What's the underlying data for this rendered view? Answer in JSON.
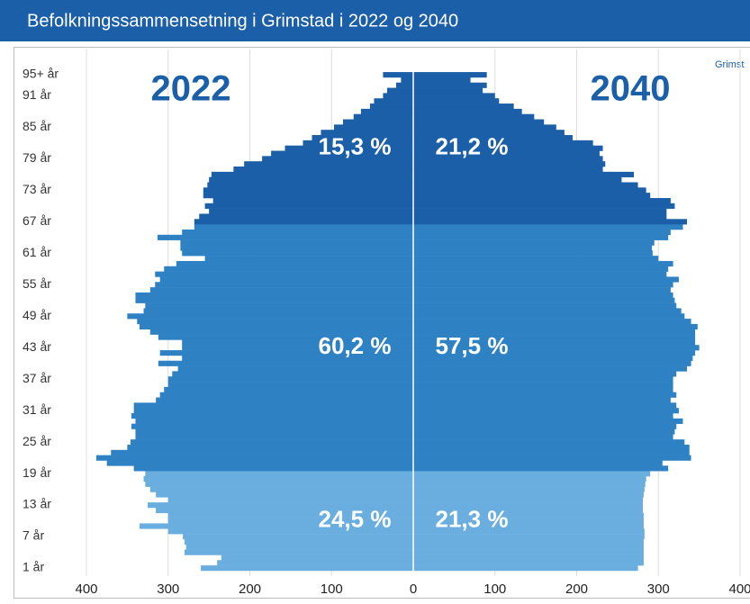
{
  "chart_data": {
    "type": "pyramid",
    "title": "Befolkningssammensetning i Grimstad i 2022 og 2040",
    "annotation": "Grimst",
    "categories": [
      "1 år",
      null,
      null,
      null,
      null,
      null,
      "7 år",
      null,
      null,
      null,
      null,
      null,
      "13 år",
      null,
      null,
      null,
      null,
      null,
      "19 år",
      null,
      null,
      null,
      null,
      null,
      "25 år",
      null,
      null,
      null,
      null,
      null,
      "31 år",
      null,
      null,
      null,
      null,
      null,
      "37 år",
      null,
      null,
      null,
      null,
      null,
      "43 år",
      null,
      null,
      null,
      null,
      null,
      "49 år",
      null,
      null,
      null,
      null,
      null,
      "55 år",
      null,
      null,
      null,
      null,
      null,
      "61 år",
      null,
      null,
      null,
      null,
      null,
      "67 år",
      null,
      null,
      null,
      null,
      null,
      "73 år",
      null,
      null,
      null,
      null,
      null,
      "79 år",
      null,
      null,
      null,
      null,
      null,
      "85 år",
      null,
      null,
      null,
      null,
      null,
      "91 år",
      null,
      null,
      null,
      "95+ år"
    ],
    "series": [
      {
        "name": "2022",
        "side": "left",
        "values": [
          260,
          240,
          235,
          280,
          278,
          280,
          282,
          300,
          335,
          300,
          300,
          315,
          325,
          300,
          315,
          322,
          328,
          330,
          328,
          342,
          375,
          388,
          370,
          350,
          346,
          340,
          340,
          345,
          340,
          345,
          342,
          342,
          315,
          310,
          305,
          300,
          300,
          295,
          288,
          312,
          283,
          310,
          283,
          283,
          312,
          322,
          335,
          338,
          350,
          330,
          328,
          340,
          340,
          322,
          316,
          310,
          316,
          305,
          290,
          255,
          283,
          285,
          285,
          313,
          283,
          268,
          268,
          262,
          250,
          255,
          245,
          257,
          257,
          252,
          250,
          247,
          220,
          207,
          185,
          174,
          157,
          135,
          124,
          113,
          97,
          86,
          73,
          64,
          53,
          48,
          37,
          32,
          21,
          15,
          37
        ]
      },
      {
        "name": "2040",
        "side": "right",
        "values": [
          275,
          282,
          282,
          282,
          282,
          282,
          283,
          283,
          282,
          282,
          282,
          281,
          281,
          281,
          282,
          283,
          284,
          285,
          290,
          312,
          305,
          340,
          338,
          338,
          332,
          318,
          320,
          322,
          330,
          318,
          325,
          322,
          315,
          322,
          318,
          318,
          318,
          322,
          335,
          340,
          342,
          345,
          350,
          345,
          345,
          345,
          348,
          340,
          332,
          328,
          322,
          320,
          318,
          315,
          318,
          325,
          310,
          312,
          318,
          300,
          293,
          292,
          295,
          312,
          315,
          330,
          335,
          310,
          310,
          320,
          315,
          290,
          285,
          275,
          255,
          270,
          232,
          235,
          232,
          228,
          232,
          220,
          195,
          185,
          175,
          160,
          148,
          133,
          123,
          105,
          100,
          85,
          90,
          70,
          90
        ]
      }
    ],
    "age_groups": [
      {
        "count": 19,
        "color": "#6aaee0",
        "shares": [
          24.5,
          21.3
        ],
        "share_labels": [
          "24,5 %",
          "21,3 %"
        ]
      },
      {
        "count": 47,
        "color": "#2e82c4",
        "shares": [
          60.2,
          57.5
        ],
        "share_labels": [
          "60,2 %",
          "57,5 %"
        ]
      },
      {
        "count": 29,
        "color": "#1a5fa8",
        "shares": [
          15.3,
          21.2
        ],
        "share_labels": [
          "15,3 %",
          "21,2 %"
        ]
      }
    ],
    "xlim": [
      -400,
      400
    ],
    "xticks": [
      {
        "value": -400,
        "label": "400"
      },
      {
        "value": -300,
        "label": "300"
      },
      {
        "value": -200,
        "label": "200"
      },
      {
        "value": -100,
        "label": "100"
      },
      0,
      100,
      200,
      300,
      400
    ],
    "grid": true
  }
}
